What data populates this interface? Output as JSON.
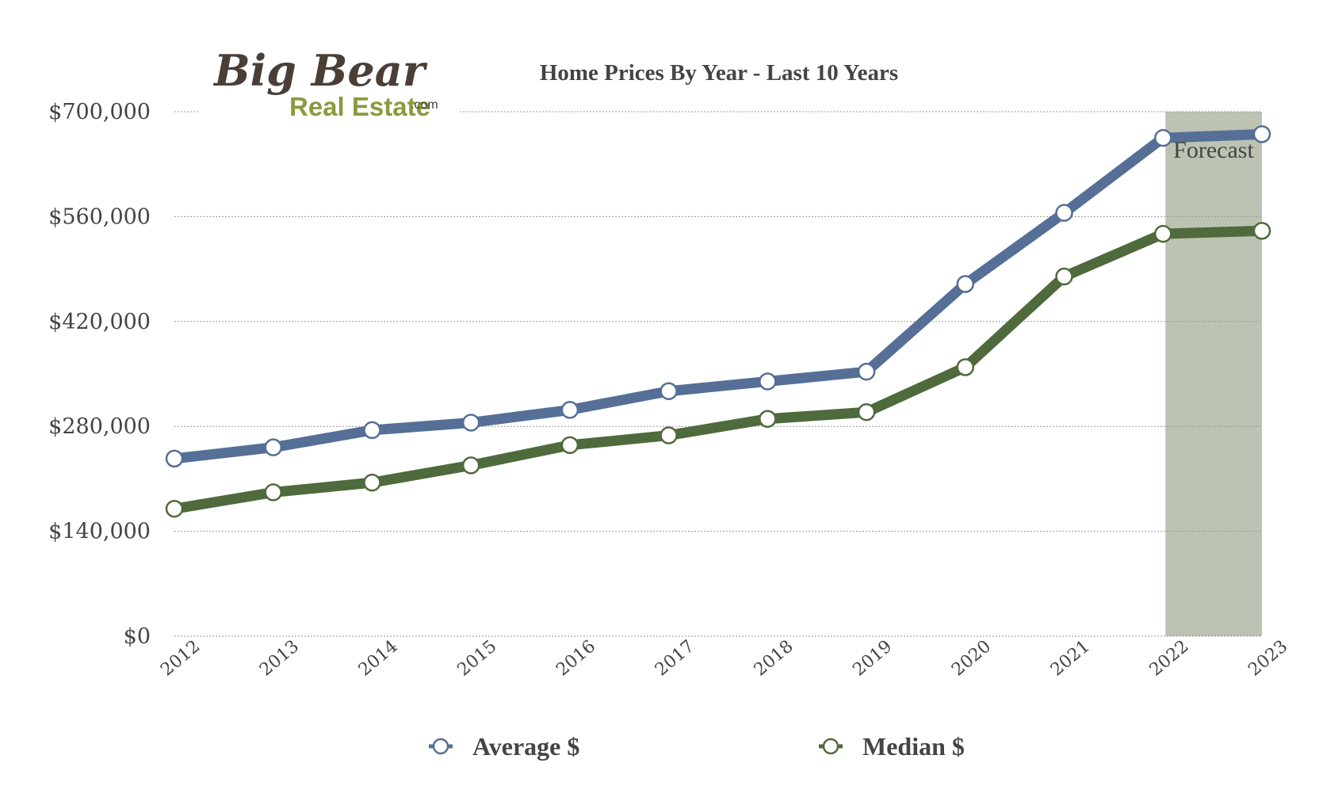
{
  "logo": {
    "line1": "Big Bear",
    "line2": "Real Estate",
    "suffix": ".com"
  },
  "colors": {
    "average": "#556f96",
    "median": "#4f6a3c",
    "forecast_band": "#bcc3b2",
    "grid": "#999999"
  },
  "chart_data": {
    "type": "line",
    "title": "Home Prices By Year - Last 10 Years",
    "categories": [
      "2012",
      "2013",
      "2014",
      "2015",
      "2016",
      "2017",
      "2018",
      "2019",
      "2020",
      "2021",
      "2022",
      "2023"
    ],
    "series": [
      {
        "name": "Average $",
        "values": [
          237000,
          252000,
          275000,
          285000,
          302000,
          327000,
          340000,
          353000,
          470000,
          565000,
          665000,
          670000
        ]
      },
      {
        "name": "Median $",
        "values": [
          170000,
          192000,
          205000,
          228000,
          255000,
          268000,
          290000,
          299000,
          359000,
          480000,
          537000,
          541000
        ]
      }
    ],
    "yticks": [
      "$0",
      "$140,000",
      "$280,000",
      "$420,000",
      "$560,000",
      "$700,000"
    ],
    "ylim": [
      0,
      700000
    ],
    "grid": true,
    "legend": "bottom",
    "annotation": {
      "label": "Forecast",
      "from": "2022",
      "to": "2023"
    }
  }
}
